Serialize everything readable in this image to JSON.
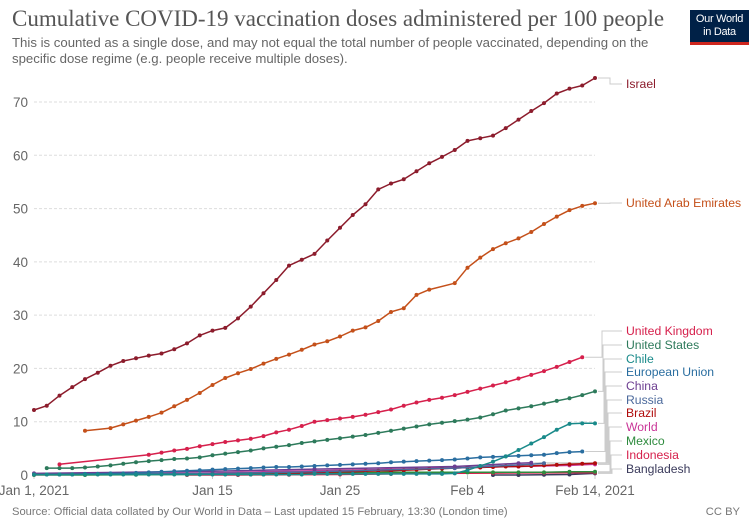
{
  "header": {
    "title": "Cumulative COVID-19 vaccination doses administered per 100 people",
    "subtitle": "This is counted as a single dose, and may not equal the total number of people vaccinated, depending on the specific dose regime (e.g. people receive multiple doses).",
    "logo_line1": "Our World",
    "logo_line2": "in Data"
  },
  "footer": {
    "source": "Source: Official data collated by Our World in Data – Last updated 15 February, 13:30 (London time)",
    "license": "CC BY"
  },
  "chart_data": {
    "type": "line",
    "title": "Cumulative COVID-19 vaccination doses administered per 100 people",
    "subtitle": "This is counted as a single dose, and may not equal the total number of people vaccinated, depending on the specific dose regime (e.g. people receive multiple doses).",
    "xlabel": "",
    "ylabel": "",
    "x_unit": "days since Jan 1, 2021",
    "xlim": [
      0,
      44
    ],
    "ylim": [
      0,
      75
    ],
    "grid": true,
    "legend_position": "right (line-end labels)",
    "x_ticks": [
      {
        "value": 0,
        "label": "Jan 1, 2021"
      },
      {
        "value": 14,
        "label": "Jan 15"
      },
      {
        "value": 24,
        "label": "Jan 25"
      },
      {
        "value": 34,
        "label": "Feb 4"
      },
      {
        "value": 44,
        "label": "Feb 14, 2021"
      }
    ],
    "y_ticks": [
      0,
      10,
      20,
      30,
      40,
      50,
      60,
      70
    ],
    "series": [
      {
        "name": "Israel",
        "color": "#8c1c2c",
        "x": [
          0,
          1,
          2,
          3,
          4,
          5,
          6,
          7,
          8,
          9,
          10,
          11,
          12,
          13,
          14,
          15,
          16,
          17,
          18,
          19,
          20,
          21,
          22,
          23,
          24,
          25,
          26,
          27,
          28,
          29,
          30,
          31,
          32,
          33,
          34,
          35,
          36,
          37,
          38,
          39,
          40,
          41,
          42,
          43,
          44
        ],
        "values": [
          12.2,
          13.0,
          14.9,
          16.5,
          18.0,
          19.2,
          20.5,
          21.4,
          21.9,
          22.4,
          22.8,
          23.6,
          24.7,
          26.2,
          27.1,
          27.6,
          29.4,
          31.6,
          34.1,
          36.6,
          39.3,
          40.4,
          41.5,
          44.0,
          46.4,
          48.8,
          50.8,
          53.6,
          54.7,
          55.5,
          57.0,
          58.5,
          59.7,
          61.0,
          62.7,
          63.2,
          63.7,
          65.1,
          66.7,
          68.3,
          69.8,
          71.6,
          72.5,
          73.1,
          74.5
        ]
      },
      {
        "name": "United Arab Emirates",
        "color": "#c4501a",
        "x": [
          4,
          6,
          7,
          8,
          9,
          10,
          11,
          12,
          13,
          14,
          15,
          16,
          17,
          18,
          19,
          20,
          21,
          22,
          23,
          24,
          25,
          26,
          27,
          28,
          29,
          30,
          31,
          33,
          34,
          35,
          36,
          37,
          38,
          39,
          40,
          41,
          42,
          43,
          44
        ],
        "values": [
          8.3,
          8.8,
          9.5,
          10.2,
          10.9,
          11.7,
          12.9,
          14.1,
          15.4,
          16.9,
          18.2,
          19.1,
          19.9,
          20.9,
          21.8,
          22.6,
          23.5,
          24.5,
          25.1,
          26.0,
          27.1,
          27.7,
          28.9,
          30.6,
          31.3,
          33.8,
          34.8,
          36.0,
          38.9,
          40.8,
          42.4,
          43.5,
          44.4,
          45.6,
          47.1,
          48.5,
          49.7,
          50.5,
          51.0
        ]
      },
      {
        "name": "United Kingdom",
        "color": "#d6204c",
        "x": [
          2,
          9,
          10,
          11,
          12,
          13,
          14,
          15,
          16,
          17,
          18,
          19,
          20,
          21,
          22,
          23,
          24,
          25,
          26,
          27,
          28,
          29,
          30,
          31,
          32,
          33,
          34,
          35,
          36,
          37,
          38,
          39,
          40,
          41,
          42,
          43
        ],
        "values": [
          2.0,
          3.8,
          4.2,
          4.6,
          4.9,
          5.4,
          5.8,
          6.2,
          6.5,
          6.8,
          7.3,
          8.0,
          8.5,
          9.2,
          10.0,
          10.3,
          10.6,
          10.9,
          11.3,
          11.8,
          12.3,
          13.0,
          13.6,
          14.1,
          14.5,
          15.0,
          15.6,
          16.2,
          16.8,
          17.4,
          18.1,
          18.8,
          19.5,
          20.3,
          21.2,
          22.1
        ]
      },
      {
        "name": "United States",
        "color": "#2d7a5b",
        "x": [
          1,
          2,
          3,
          4,
          5,
          6,
          7,
          8,
          9,
          10,
          11,
          12,
          13,
          14,
          15,
          16,
          17,
          18,
          19,
          20,
          21,
          22,
          23,
          24,
          25,
          26,
          27,
          28,
          29,
          30,
          31,
          32,
          33,
          34,
          35,
          36,
          37,
          38,
          39,
          40,
          41,
          42,
          43,
          44
        ],
        "values": [
          1.3,
          1.3,
          1.3,
          1.4,
          1.6,
          1.8,
          2.1,
          2.4,
          2.6,
          2.8,
          3.0,
          3.1,
          3.3,
          3.7,
          4.0,
          4.3,
          4.6,
          5.0,
          5.3,
          5.6,
          6.0,
          6.3,
          6.6,
          6.9,
          7.2,
          7.5,
          7.9,
          8.3,
          8.7,
          9.1,
          9.5,
          9.8,
          10.1,
          10.4,
          10.8,
          11.4,
          12.1,
          12.5,
          12.9,
          13.4,
          13.9,
          14.4,
          15.0,
          15.7
        ]
      },
      {
        "name": "Chile",
        "color": "#198a8a",
        "x": [
          0,
          1,
          2,
          3,
          4,
          5,
          6,
          7,
          8,
          9,
          10,
          11,
          12,
          13,
          14,
          15,
          16,
          17,
          18,
          19,
          20,
          21,
          22,
          23,
          24,
          25,
          26,
          27,
          28,
          29,
          30,
          31,
          32,
          33,
          34,
          35,
          36,
          37,
          38,
          39,
          40,
          41,
          42,
          43,
          44
        ],
        "values": [
          0.1,
          0.1,
          0.1,
          0.1,
          0.1,
          0.1,
          0.1,
          0.1,
          0.1,
          0.1,
          0.1,
          0.1,
          0.1,
          0.1,
          0.1,
          0.1,
          0.1,
          0.1,
          0.1,
          0.1,
          0.1,
          0.1,
          0.2,
          0.2,
          0.2,
          0.2,
          0.2,
          0.2,
          0.2,
          0.2,
          0.2,
          0.2,
          0.2,
          0.3,
          0.9,
          1.7,
          2.5,
          3.5,
          4.7,
          5.9,
          7.1,
          8.5,
          9.6,
          9.7,
          9.7
        ]
      },
      {
        "name": "European Union",
        "color": "#2a6ea0",
        "x": [
          1,
          2,
          3,
          4,
          5,
          6,
          7,
          8,
          9,
          10,
          11,
          12,
          13,
          14,
          15,
          16,
          17,
          18,
          19,
          20,
          21,
          22,
          23,
          24,
          25,
          26,
          27,
          28,
          29,
          30,
          31,
          32,
          33,
          34,
          35,
          36,
          37,
          38,
          39,
          40,
          41,
          42,
          43
        ],
        "values": [
          0.1,
          0.1,
          0.1,
          0.2,
          0.2,
          0.3,
          0.3,
          0.4,
          0.5,
          0.6,
          0.7,
          0.8,
          0.9,
          1.0,
          1.1,
          1.2,
          1.3,
          1.4,
          1.5,
          1.5,
          1.6,
          1.7,
          1.8,
          1.9,
          2.0,
          2.1,
          2.2,
          2.4,
          2.5,
          2.6,
          2.7,
          2.8,
          2.9,
          3.1,
          3.3,
          3.4,
          3.5,
          3.6,
          3.7,
          3.8,
          4.1,
          4.3,
          4.4
        ]
      },
      {
        "name": "China",
        "color": "#6d3e91",
        "x": [
          0,
          14,
          22,
          33,
          38,
          39
        ],
        "values": [
          0.3,
          0.7,
          1.1,
          1.6,
          2.2,
          2.3
        ]
      },
      {
        "name": "Russia",
        "color": "#4c6a9c",
        "x": [
          0,
          14,
          22,
          33,
          39,
          40
        ],
        "values": [
          0.1,
          0.3,
          0.6,
          1.3,
          2.0,
          2.2
        ]
      },
      {
        "name": "Brazil",
        "color": "#b00c0c",
        "x": [
          17,
          18,
          19,
          20,
          21,
          22,
          23,
          24,
          25,
          26,
          27,
          28,
          29,
          30,
          31,
          32,
          33,
          34,
          35,
          36,
          37,
          38,
          39,
          40,
          41,
          42,
          43,
          44
        ],
        "values": [
          0.1,
          0.1,
          0.2,
          0.2,
          0.3,
          0.4,
          0.5,
          0.6,
          0.6,
          0.7,
          0.8,
          0.8,
          0.9,
          1.0,
          1.1,
          1.2,
          1.3,
          1.4,
          1.4,
          1.5,
          1.6,
          1.6,
          1.7,
          1.8,
          1.9,
          2.0,
          2.1,
          2.2
        ]
      },
      {
        "name": "World",
        "color": "#c93597",
        "x": [
          0,
          5,
          10,
          14,
          18,
          22,
          26,
          30,
          34,
          38,
          42,
          44
        ],
        "values": [
          0.1,
          0.2,
          0.3,
          0.4,
          0.6,
          0.8,
          1.0,
          1.2,
          1.4,
          1.6,
          1.8,
          2.0
        ]
      },
      {
        "name": "Mexico",
        "color": "#2e8b3e",
        "x": [
          0,
          4,
          8,
          12,
          16,
          20,
          24,
          28,
          32,
          34,
          36,
          38,
          40,
          42,
          44
        ],
        "values": [
          0.0,
          0.0,
          0.05,
          0.1,
          0.2,
          0.3,
          0.4,
          0.5,
          0.5,
          0.5,
          0.5,
          0.5,
          0.5,
          0.6,
          0.6
        ]
      },
      {
        "name": "Indonesia",
        "color": "#d6204c",
        "x": [
          12,
          16,
          20,
          24,
          28,
          32,
          36,
          40,
          44
        ],
        "values": [
          0.0,
          0.0,
          0.05,
          0.1,
          0.2,
          0.3,
          0.35,
          0.4,
          0.45
        ]
      },
      {
        "name": "Bangladesh",
        "color": "#3b3b5c",
        "x": [
          36,
          38,
          40,
          42,
          44
        ],
        "values": [
          0.0,
          0.0,
          0.05,
          0.1,
          0.3
        ]
      }
    ]
  }
}
